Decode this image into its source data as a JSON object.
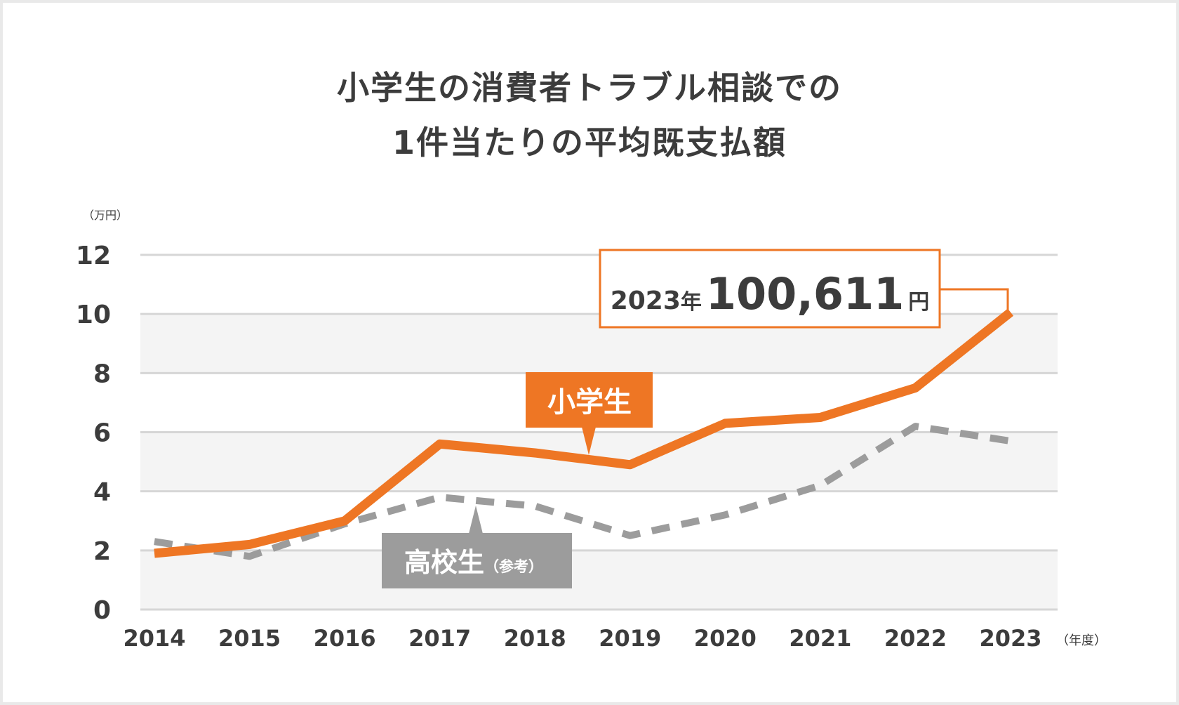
{
  "title": {
    "line1": "小学生の消費者トラブル相談での",
    "line2": "1件当たりの平均既支払額"
  },
  "chart_data": {
    "type": "line",
    "title": "小学生の消費者トラブル相談での1件当たりの平均既支払額",
    "ylabel": "（万円）",
    "xlabel": "（年度）",
    "x": [
      "2014",
      "2015",
      "2016",
      "2017",
      "2018",
      "2019",
      "2020",
      "2021",
      "2022",
      "2023"
    ],
    "ylim": [
      0,
      12
    ],
    "yticks": [
      "0",
      "2",
      "4",
      "6",
      "8",
      "10",
      "12"
    ],
    "grid": true,
    "series": [
      {
        "name": "小学生",
        "color": "#ee7624",
        "style": "solid",
        "values": [
          1.9,
          2.2,
          3.0,
          5.6,
          5.3,
          4.9,
          6.3,
          6.5,
          7.5,
          10.06
        ]
      },
      {
        "name": "高校生（参考）",
        "color": "#9c9c9c",
        "style": "dashed",
        "values": [
          2.3,
          1.8,
          2.9,
          3.8,
          3.5,
          2.5,
          3.2,
          4.2,
          6.2,
          5.7
        ]
      }
    ],
    "callout": {
      "year": "2023",
      "year_suffix": "年",
      "amount": "100,611",
      "amount_unit": "円"
    },
    "labels": {
      "elementary": "小学生",
      "high_school_main": "高校生",
      "high_school_note": "（参考）"
    }
  },
  "colors": {
    "accent": "#ee7624",
    "reference": "#9c9c9c",
    "band": "#f4f4f4",
    "text": "#3c3c3c"
  }
}
